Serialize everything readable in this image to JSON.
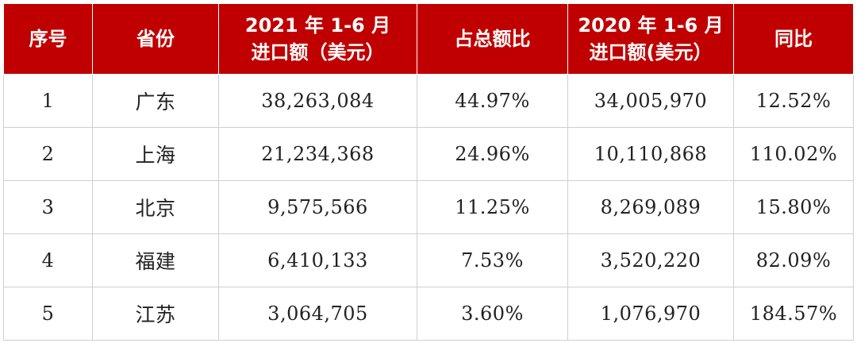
{
  "table": {
    "headers": [
      {
        "lines": [
          "序号"
        ]
      },
      {
        "lines": [
          "省份"
        ]
      },
      {
        "lines": [
          "2021 年 1-6 月",
          "进口额（美元）"
        ]
      },
      {
        "lines": [
          "占总额比"
        ]
      },
      {
        "lines": [
          "2020 年 1-6 月",
          "进口额(美元）"
        ]
      },
      {
        "lines": [
          "同比"
        ]
      }
    ],
    "rows": [
      [
        "1",
        "广东",
        "38,263,084",
        "44.97%",
        "34,005,970",
        "12.52%"
      ],
      [
        "2",
        "上海",
        "21,234,368",
        "24.96%",
        "10,110,868",
        "110.02%"
      ],
      [
        "3",
        "北京",
        "9,575,566",
        "11.25%",
        "8,269,089",
        "15.80%"
      ],
      [
        "4",
        "福建",
        "6,410,133",
        "7.53%",
        "3,520,220",
        "82.09%"
      ],
      [
        "5",
        "江苏",
        "3,064,705",
        "3.60%",
        "1,076,970",
        "184.57%"
      ]
    ]
  },
  "colors": {
    "header_bg": "#c00000",
    "header_text": "#ffffff",
    "grid": "#cfcfcf"
  }
}
